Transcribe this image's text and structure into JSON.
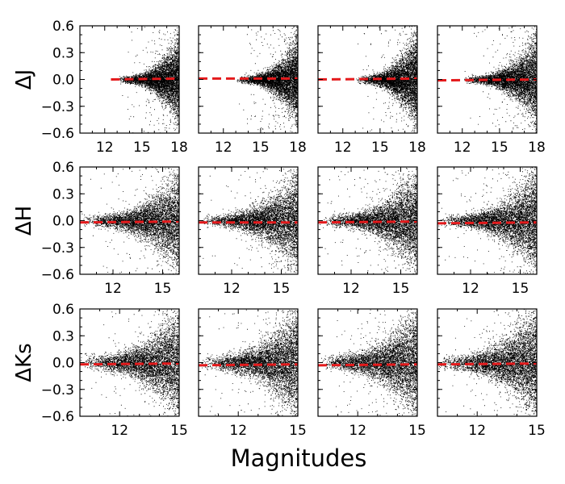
{
  "figure": {
    "xlabel": "Magnitudes",
    "colors": {
      "points": "#000000",
      "reference_line": "#e41a1c",
      "frame": "#000000"
    }
  },
  "chart_data": [
    {
      "type": "scatter",
      "row": 0,
      "col": 0,
      "ylabel": "ΔJ",
      "xlim": [
        10,
        18
      ],
      "ylim": [
        -0.6,
        0.6
      ],
      "xticks": [
        12,
        15,
        18
      ],
      "xtick_labels": [
        "12",
        "15",
        "18"
      ],
      "yticks": [
        -0.6,
        -0.3,
        0.0,
        0.3,
        0.6
      ],
      "ytick_labels": [
        "−0.6",
        "−0.3",
        "0.0",
        "0.3",
        "0.6"
      ],
      "points_start_x": 13.0,
      "scatter_floor": 0.02,
      "scatter_peak": 0.22,
      "fit_line": {
        "x": [
          12.5,
          18
        ],
        "y": [
          0.0,
          0.01
        ]
      }
    },
    {
      "type": "scatter",
      "row": 0,
      "col": 1,
      "xlim": [
        10,
        18
      ],
      "ylim": [
        -0.6,
        0.6
      ],
      "xticks": [
        12,
        15,
        18
      ],
      "xtick_labels": [
        "12",
        "15",
        "18"
      ],
      "yticks": [
        -0.6,
        -0.3,
        0.0,
        0.3,
        0.6
      ],
      "points_start_x": 13.0,
      "scatter_floor": 0.02,
      "scatter_peak": 0.22,
      "fit_line": {
        "x": [
          10,
          18
        ],
        "y": [
          0.01,
          0.01
        ]
      }
    },
    {
      "type": "scatter",
      "row": 0,
      "col": 2,
      "xlim": [
        10,
        18
      ],
      "ylim": [
        -0.6,
        0.6
      ],
      "xticks": [
        12,
        15,
        18
      ],
      "xtick_labels": [
        "12",
        "15",
        "18"
      ],
      "yticks": [
        -0.6,
        -0.3,
        0.0,
        0.3,
        0.6
      ],
      "points_start_x": 13.0,
      "scatter_floor": 0.02,
      "scatter_peak": 0.24,
      "fit_line": {
        "x": [
          10,
          18
        ],
        "y": [
          0.0,
          0.01
        ]
      }
    },
    {
      "type": "scatter",
      "row": 0,
      "col": 3,
      "xlim": [
        10,
        18
      ],
      "ylim": [
        -0.6,
        0.6
      ],
      "xticks": [
        12,
        15,
        18
      ],
      "xtick_labels": [
        "12",
        "15",
        "18"
      ],
      "yticks": [
        -0.6,
        -0.3,
        0.0,
        0.3,
        0.6
      ],
      "points_start_x": 12.0,
      "scatter_floor": 0.02,
      "scatter_peak": 0.22,
      "fit_line": {
        "x": [
          10,
          18
        ],
        "y": [
          -0.01,
          0.0
        ]
      }
    },
    {
      "type": "scatter",
      "row": 1,
      "col": 0,
      "ylabel": "ΔH",
      "xlim": [
        10,
        16
      ],
      "ylim": [
        -0.6,
        0.6
      ],
      "xticks": [
        12,
        15
      ],
      "xtick_labels": [
        "12",
        "15"
      ],
      "yticks": [
        -0.6,
        -0.3,
        0.0,
        0.3,
        0.6
      ],
      "ytick_labels": [
        "−0.6",
        "−0.3",
        "0.0",
        "0.3",
        "0.6"
      ],
      "points_start_x": 10.0,
      "scatter_floor": 0.03,
      "scatter_peak": 0.25,
      "fit_line": {
        "x": [
          10,
          16
        ],
        "y": [
          -0.02,
          -0.01
        ]
      }
    },
    {
      "type": "scatter",
      "row": 1,
      "col": 1,
      "xlim": [
        10,
        16
      ],
      "ylim": [
        -0.6,
        0.6
      ],
      "xticks": [
        12,
        15
      ],
      "xtick_labels": [
        "12",
        "15"
      ],
      "yticks": [
        -0.6,
        -0.3,
        0.0,
        0.3,
        0.6
      ],
      "points_start_x": 10.0,
      "scatter_floor": 0.03,
      "scatter_peak": 0.25,
      "fit_line": {
        "x": [
          10,
          16
        ],
        "y": [
          -0.02,
          -0.02
        ]
      }
    },
    {
      "type": "scatter",
      "row": 1,
      "col": 2,
      "xlim": [
        10,
        16
      ],
      "ylim": [
        -0.6,
        0.6
      ],
      "xticks": [
        12,
        15
      ],
      "xtick_labels": [
        "12",
        "15"
      ],
      "yticks": [
        -0.6,
        -0.3,
        0.0,
        0.3,
        0.6
      ],
      "points_start_x": 10.0,
      "scatter_floor": 0.03,
      "scatter_peak": 0.25,
      "fit_line": {
        "x": [
          10,
          16
        ],
        "y": [
          -0.02,
          -0.01
        ]
      }
    },
    {
      "type": "scatter",
      "row": 1,
      "col": 3,
      "xlim": [
        10,
        16
      ],
      "ylim": [
        -0.6,
        0.6
      ],
      "xticks": [
        12,
        15
      ],
      "xtick_labels": [
        "12",
        "15"
      ],
      "yticks": [
        -0.6,
        -0.3,
        0.0,
        0.3,
        0.6
      ],
      "points_start_x": 10.0,
      "scatter_floor": 0.03,
      "scatter_peak": 0.26,
      "fit_line": {
        "x": [
          10,
          16
        ],
        "y": [
          -0.03,
          -0.02
        ]
      }
    },
    {
      "type": "scatter",
      "row": 2,
      "col": 0,
      "ylabel": "ΔKs",
      "xlim": [
        10,
        15
      ],
      "ylim": [
        -0.6,
        0.6
      ],
      "xticks": [
        12,
        15
      ],
      "xtick_labels": [
        "12",
        "15"
      ],
      "yticks": [
        -0.6,
        -0.3,
        0.0,
        0.3,
        0.6
      ],
      "ytick_labels": [
        "−0.6",
        "−0.3",
        "0.0",
        "0.3",
        "0.6"
      ],
      "points_start_x": 10.0,
      "scatter_floor": 0.04,
      "scatter_peak": 0.27,
      "fit_line": {
        "x": [
          10,
          15
        ],
        "y": [
          -0.02,
          -0.01
        ]
      }
    },
    {
      "type": "scatter",
      "row": 2,
      "col": 1,
      "xlim": [
        10,
        15
      ],
      "ylim": [
        -0.6,
        0.6
      ],
      "xticks": [
        12,
        15
      ],
      "xtick_labels": [
        "12",
        "15"
      ],
      "yticks": [
        -0.6,
        -0.3,
        0.0,
        0.3,
        0.6
      ],
      "points_start_x": 10.0,
      "scatter_floor": 0.04,
      "scatter_peak": 0.27,
      "fit_line": {
        "x": [
          10,
          15
        ],
        "y": [
          -0.03,
          -0.02
        ]
      }
    },
    {
      "type": "scatter",
      "row": 2,
      "col": 2,
      "xlim": [
        10,
        15
      ],
      "ylim": [
        -0.6,
        0.6
      ],
      "xticks": [
        12,
        15
      ],
      "xtick_labels": [
        "12",
        "15"
      ],
      "yticks": [
        -0.6,
        -0.3,
        0.0,
        0.3,
        0.6
      ],
      "points_start_x": 10.0,
      "scatter_floor": 0.04,
      "scatter_peak": 0.27,
      "fit_line": {
        "x": [
          10,
          15
        ],
        "y": [
          -0.03,
          -0.02
        ]
      }
    },
    {
      "type": "scatter",
      "row": 2,
      "col": 3,
      "xlim": [
        10,
        15
      ],
      "ylim": [
        -0.6,
        0.6
      ],
      "xticks": [
        12,
        15
      ],
      "xtick_labels": [
        "12",
        "15"
      ],
      "yticks": [
        -0.6,
        -0.3,
        0.0,
        0.3,
        0.6
      ],
      "points_start_x": 10.0,
      "scatter_floor": 0.04,
      "scatter_peak": 0.27,
      "fit_line": {
        "x": [
          10,
          15
        ],
        "y": [
          -0.02,
          -0.01
        ]
      }
    }
  ]
}
